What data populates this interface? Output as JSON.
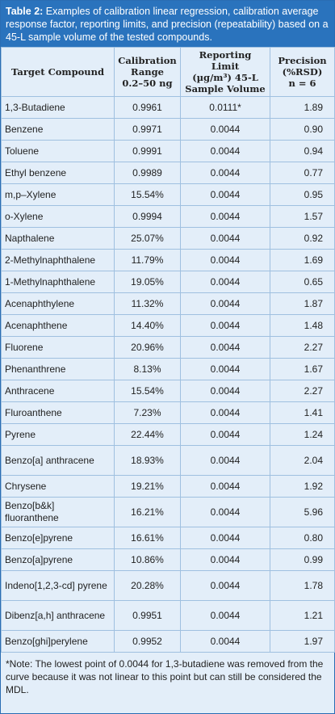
{
  "header": {
    "label": "Table 2:",
    "title": "Examples of calibration linear regression, calibration average response factor, reporting limits, and precision (repeatability) based on a 45-L sample volume of the tested compounds."
  },
  "table": {
    "columns": [
      [
        "Target Compound"
      ],
      [
        "Calibration",
        "Range",
        "0.2–50 ng"
      ],
      [
        "Reporting Limit",
        "(µg/m³) 45-L",
        "Sample Volume"
      ],
      [
        "Precision",
        "(%RSD)",
        "n = 6"
      ]
    ],
    "rows": [
      [
        "1,3-Butadiene",
        "0.9961",
        "0.0111*",
        "1.89"
      ],
      [
        "Benzene",
        "0.9971",
        "0.0044",
        "0.90"
      ],
      [
        "Toluene",
        "0.9991",
        "0.0044",
        "0.94"
      ],
      [
        "Ethyl benzene",
        "0.9989",
        "0.0044",
        "0.77"
      ],
      [
        "m,p–Xylene",
        "15.54%",
        "0.0044",
        "0.95"
      ],
      [
        "o-Xylene",
        "0.9994",
        "0.0044",
        "1.57"
      ],
      [
        "Napthalene",
        "25.07%",
        "0.0044",
        "0.92"
      ],
      [
        "2-Methylnaphthalene",
        "11.79%",
        "0.0044",
        "1.69"
      ],
      [
        "1-Methylnaphthalene",
        "19.05%",
        "0.0044",
        "0.65"
      ],
      [
        "Acenaphthylene",
        "11.32%",
        "0.0044",
        "1.87"
      ],
      [
        "Acenaphthene",
        "14.40%",
        "0.0044",
        "1.48"
      ],
      [
        "Fluorene",
        "20.96%",
        "0.0044",
        "2.27"
      ],
      [
        "Phenanthrene",
        "8.13%",
        "0.0044",
        "1.67"
      ],
      [
        "Anthracene",
        "15.54%",
        "0.0044",
        "2.27"
      ],
      [
        "Fluroanthene",
        "7.23%",
        "0.0044",
        "1.41"
      ],
      [
        "Pyrene",
        "22.44%",
        "0.0044",
        "1.24"
      ],
      [
        "Benzo[a] anthracene",
        "18.93%",
        "0.0044",
        "2.04"
      ],
      [
        "Chrysene",
        "19.21%",
        "0.0044",
        "1.92"
      ],
      [
        "Benzo[b&k] fluoranthene",
        "16.21%",
        "0.0044",
        "5.96"
      ],
      [
        "Benzo[e]pyrene",
        "16.61%",
        "0.0044",
        "0.80"
      ],
      [
        "Benzo[a]pyrene",
        "10.86%",
        "0.0044",
        "0.99"
      ],
      [
        "Indeno[1,2,3-cd] pyrene",
        "20.28%",
        "0.0044",
        "1.78"
      ],
      [
        "Dibenz[a,h] anthracene",
        "0.9951",
        "0.0044",
        "1.21"
      ],
      [
        "Benzo[ghi]perylene",
        "0.9952",
        "0.0044",
        "1.97"
      ]
    ]
  },
  "note": "*Note: The lowest point of 0.0044 for 1,3-butadiene was removed from the curve because it was not linear to this point but can still be considered the MDL."
}
